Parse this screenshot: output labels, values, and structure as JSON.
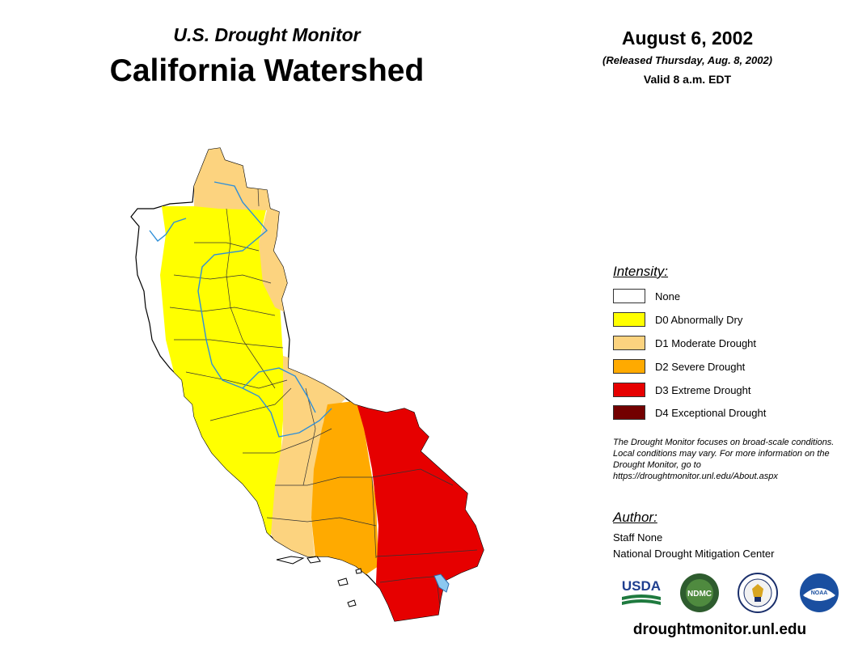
{
  "header": {
    "subtitle": "U.S. Drought Monitor",
    "title": "California Watershed"
  },
  "date": {
    "title": "August 6, 2002",
    "released": "(Released Thursday, Aug. 8, 2002)",
    "valid": "Valid 8 a.m. EDT"
  },
  "legend": {
    "title": "Intensity:",
    "items": [
      {
        "label": "None",
        "color": "#ffffff"
      },
      {
        "label": "D0 Abnormally Dry",
        "color": "#ffff00"
      },
      {
        "label": "D1 Moderate Drought",
        "color": "#fcd37f"
      },
      {
        "label": "D2 Severe Drought",
        "color": "#ffaa00"
      },
      {
        "label": "D3 Extreme Drought",
        "color": "#e60000"
      },
      {
        "label": "D4 Exceptional Drought",
        "color": "#730000"
      }
    ]
  },
  "note": "The Drought Monitor focuses on broad-scale conditions. Local conditions may vary. For more information on the Drought Monitor, go to https://droughtmonitor.unl.edu/About.aspx",
  "author": {
    "title": "Author:",
    "name": "Staff None",
    "org": "National Drought Mitigation Center"
  },
  "logos": [
    {
      "name": "usda-logo",
      "text": "USDA"
    },
    {
      "name": "ndmc-logo",
      "text": "NDMC"
    },
    {
      "name": "commerce-seal",
      "text": ""
    },
    {
      "name": "noaa-logo",
      "text": "NOAA"
    }
  ],
  "site_url": "droughtmonitor.unl.edu"
}
